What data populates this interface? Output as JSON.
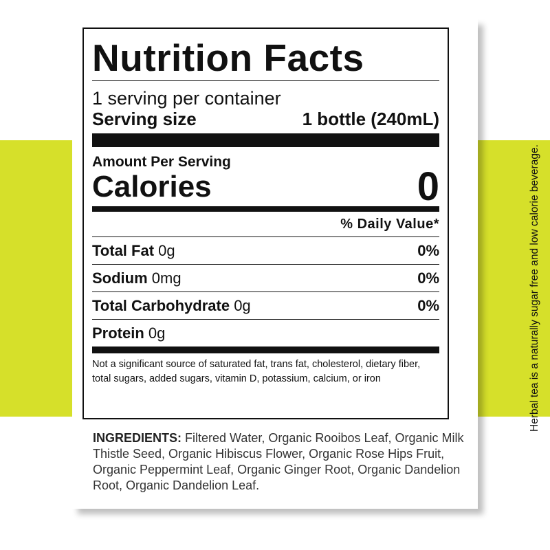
{
  "colors": {
    "band": "#d6e02a",
    "text": "#111111"
  },
  "label": {
    "title": "Nutrition Facts",
    "servings_per_container": "1 serving per container",
    "serving_size_label": "Serving size",
    "serving_size_value": "1 bottle (240mL)",
    "amount_per_serving": "Amount Per Serving",
    "calories_label": "Calories",
    "calories_value": "0",
    "daily_value_header": "% Daily Value*",
    "nutrients": [
      {
        "name": "Total Fat",
        "amount": "0g",
        "dv": "0%"
      },
      {
        "name": "Sodium",
        "amount": "0mg",
        "dv": "0%"
      },
      {
        "name": "Total Carbohydrate",
        "amount": "0g",
        "dv": "0%"
      },
      {
        "name": "Protein",
        "amount": "0g",
        "dv": ""
      }
    ],
    "footnote": "Not a significant source of saturated fat, trans fat, cholesterol, dietary fiber, total sugars, added sugars, vitamin D, potassium, calcium, or iron"
  },
  "side_note": "Herbal tea is a naturally sugar free and low calorie beverage.",
  "ingredients": {
    "heading": "INGREDIENTS:",
    "text": "Filtered Water, Organic Rooibos Leaf, Organic Milk Thistle Seed, Organic Hibiscus Flower, Organic Rose Hips Fruit, Organic Peppermint Leaf, Organic Ginger Root, Organic Dandelion Root, Organic Dandelion Leaf."
  }
}
